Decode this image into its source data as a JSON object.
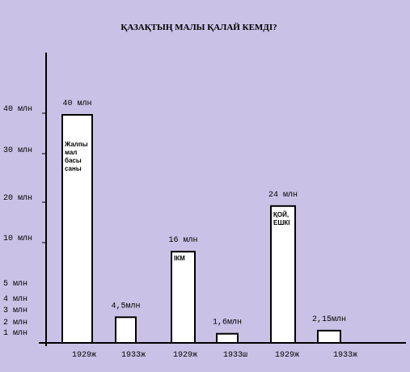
{
  "chart_data": {
    "type": "bar",
    "title": "ҚАЗАҚТЫҢ МАЛЫ ҚАЛАЙ КЕМДІ?",
    "xlabel": "",
    "ylabel": "",
    "ylim": [
      0,
      40
    ],
    "grid": false,
    "legend": "none",
    "y_ticks": [
      {
        "value": 40,
        "label": "40 млн"
      },
      {
        "value": 30,
        "label": "30 млн"
      },
      {
        "value": 20,
        "label": "20 млн"
      },
      {
        "value": 10,
        "label": "10 млн"
      },
      {
        "value": 5,
        "label": "5 млн"
      },
      {
        "value": 4,
        "label": "4 млн"
      },
      {
        "value": 3,
        "label": "3 млн"
      },
      {
        "value": 2,
        "label": "2 млн"
      },
      {
        "value": 1,
        "label": "1 млн"
      }
    ],
    "categories": [
      "1929ж",
      "1933ж",
      "1929ж",
      "1933ш",
      "1929ж",
      "1933ж"
    ],
    "values": [
      40,
      4.5,
      16,
      1.6,
      24,
      2.15
    ],
    "value_labels": [
      "40 млн",
      "4,5млн",
      "16 млн",
      "1,6млн",
      "24 млн",
      "2,15млн"
    ],
    "group_labels": [
      {
        "bar": 0,
        "lines": [
          "Жалпы",
          "мал",
          "басы",
          "саны"
        ]
      },
      {
        "bar": 2,
        "lines": [
          "ІКМ"
        ]
      },
      {
        "bar": 4,
        "lines": [
          "ҚОЙ,",
          "ЕШКІ"
        ]
      }
    ]
  },
  "colors": {
    "background": "#cac2e6",
    "bar_fill": "#ffffff",
    "bar_stroke": "#000000"
  }
}
